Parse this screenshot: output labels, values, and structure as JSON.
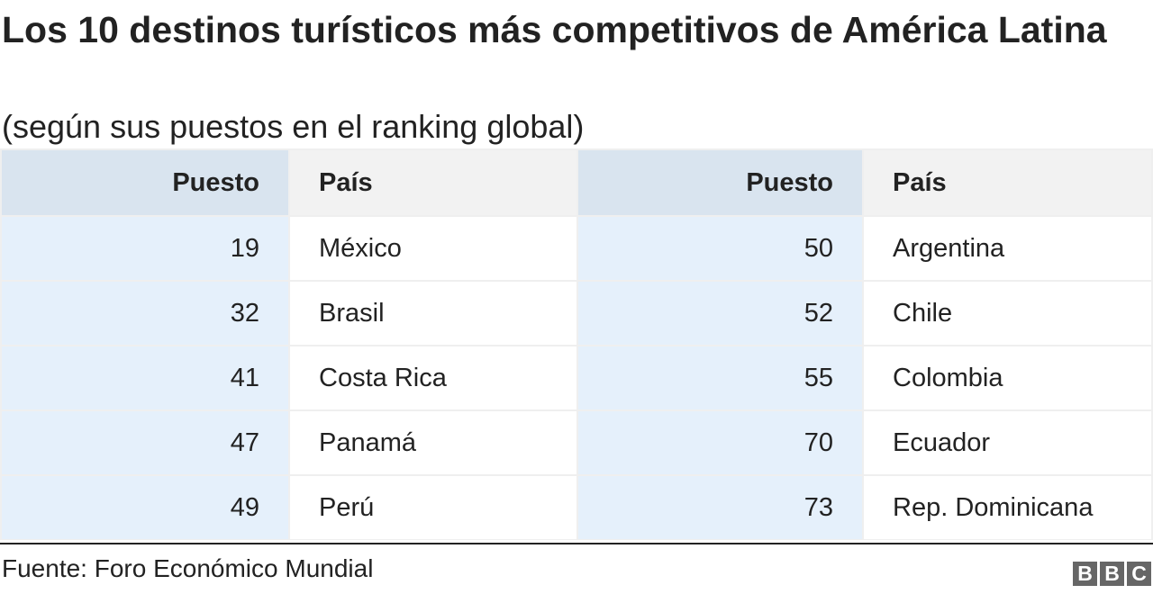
{
  "chart_data": {
    "type": "table",
    "title": "Los 10 destinos turísticos más competitivos de América Latina",
    "subtitle": "(según sus puestos en el ranking global)",
    "columns": [
      "Puesto",
      "País",
      "Puesto",
      "País"
    ],
    "rows": [
      [
        "19",
        "México",
        "50",
        "Argentina"
      ],
      [
        "32",
        "Brasil",
        "52",
        "Chile"
      ],
      [
        "41",
        "Costa Rica",
        "55",
        "Colombia"
      ],
      [
        "47",
        "Panamá",
        "70",
        "Ecuador"
      ],
      [
        "49",
        "Perú",
        "73",
        "Rep. Dominicana"
      ]
    ],
    "source": "Fuente: Foro Económico Mundial"
  },
  "logo": {
    "letters": [
      "B",
      "B",
      "C"
    ],
    "text": "BBC"
  },
  "colors": {
    "text": "#222222",
    "number_header_bg": "#d9e4ef",
    "number_cell_bg": "#e5f0fb",
    "text_header_bg": "#f2f2f2",
    "text_cell_bg": "#ffffff",
    "grid": "#efefef",
    "logo_bg": "#666666"
  }
}
